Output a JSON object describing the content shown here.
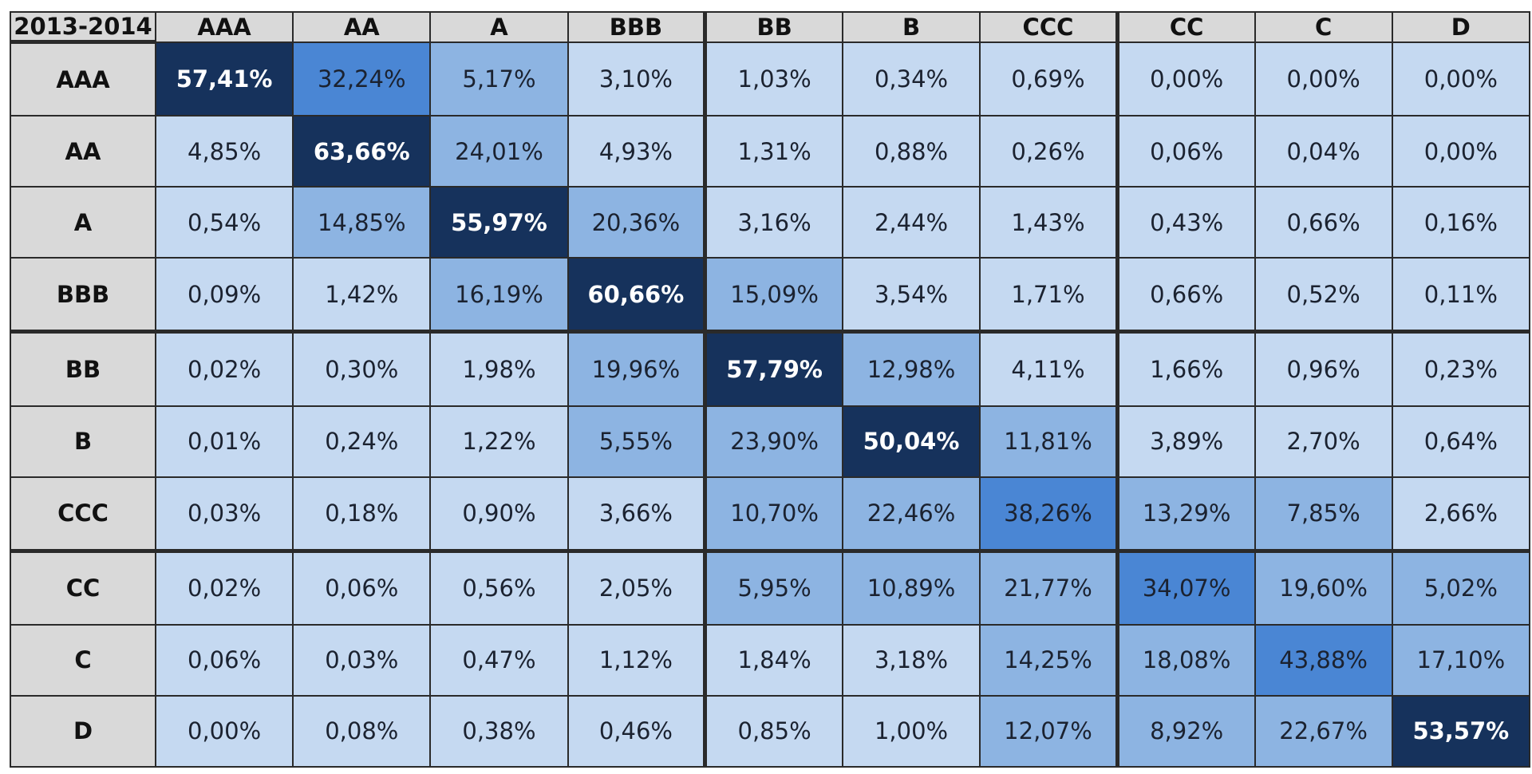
{
  "chart_data": {
    "type": "heatmap",
    "corner_label": "2013-2014",
    "columns": [
      "AAA",
      "AA",
      "A",
      "BBB",
      "BB",
      "B",
      "CCC",
      "CC",
      "C",
      "D"
    ],
    "rows": [
      "AAA",
      "AA",
      "A",
      "BBB",
      "BB",
      "B",
      "CCC",
      "CC",
      "C",
      "D"
    ],
    "values": [
      [
        "57,41%",
        "32,24%",
        "5,17%",
        "3,10%",
        "1,03%",
        "0,34%",
        "0,69%",
        "0,00%",
        "0,00%",
        "0,00%"
      ],
      [
        "4,85%",
        "63,66%",
        "24,01%",
        "4,93%",
        "1,31%",
        "0,88%",
        "0,26%",
        "0,06%",
        "0,04%",
        "0,00%"
      ],
      [
        "0,54%",
        "14,85%",
        "55,97%",
        "20,36%",
        "3,16%",
        "2,44%",
        "1,43%",
        "0,43%",
        "0,66%",
        "0,16%"
      ],
      [
        "0,09%",
        "1,42%",
        "16,19%",
        "60,66%",
        "15,09%",
        "3,54%",
        "1,71%",
        "0,66%",
        "0,52%",
        "0,11%"
      ],
      [
        "0,02%",
        "0,30%",
        "1,98%",
        "19,96%",
        "57,79%",
        "12,98%",
        "4,11%",
        "1,66%",
        "0,96%",
        "0,23%"
      ],
      [
        "0,01%",
        "0,24%",
        "1,22%",
        "5,55%",
        "23,90%",
        "50,04%",
        "11,81%",
        "3,89%",
        "2,70%",
        "0,64%"
      ],
      [
        "0,03%",
        "0,18%",
        "0,90%",
        "3,66%",
        "10,70%",
        "22,46%",
        "38,26%",
        "13,29%",
        "7,85%",
        "2,66%"
      ],
      [
        "0,02%",
        "0,06%",
        "0,56%",
        "2,05%",
        "5,95%",
        "10,89%",
        "21,77%",
        "34,07%",
        "19,60%",
        "5,02%"
      ],
      [
        "0,06%",
        "0,03%",
        "0,47%",
        "1,12%",
        "1,84%",
        "3,18%",
        "14,25%",
        "18,08%",
        "43,88%",
        "17,10%"
      ],
      [
        "0,00%",
        "0,08%",
        "0,38%",
        "0,46%",
        "0,85%",
        "1,00%",
        "12,07%",
        "8,92%",
        "22,67%",
        "53,57%"
      ]
    ],
    "color_scale": {
      "header_fill": "#d9d9d9",
      "low": "#c5d9f1",
      "medium": "#8db4e2",
      "high": "#4a86d4",
      "top": "#16325c"
    }
  }
}
